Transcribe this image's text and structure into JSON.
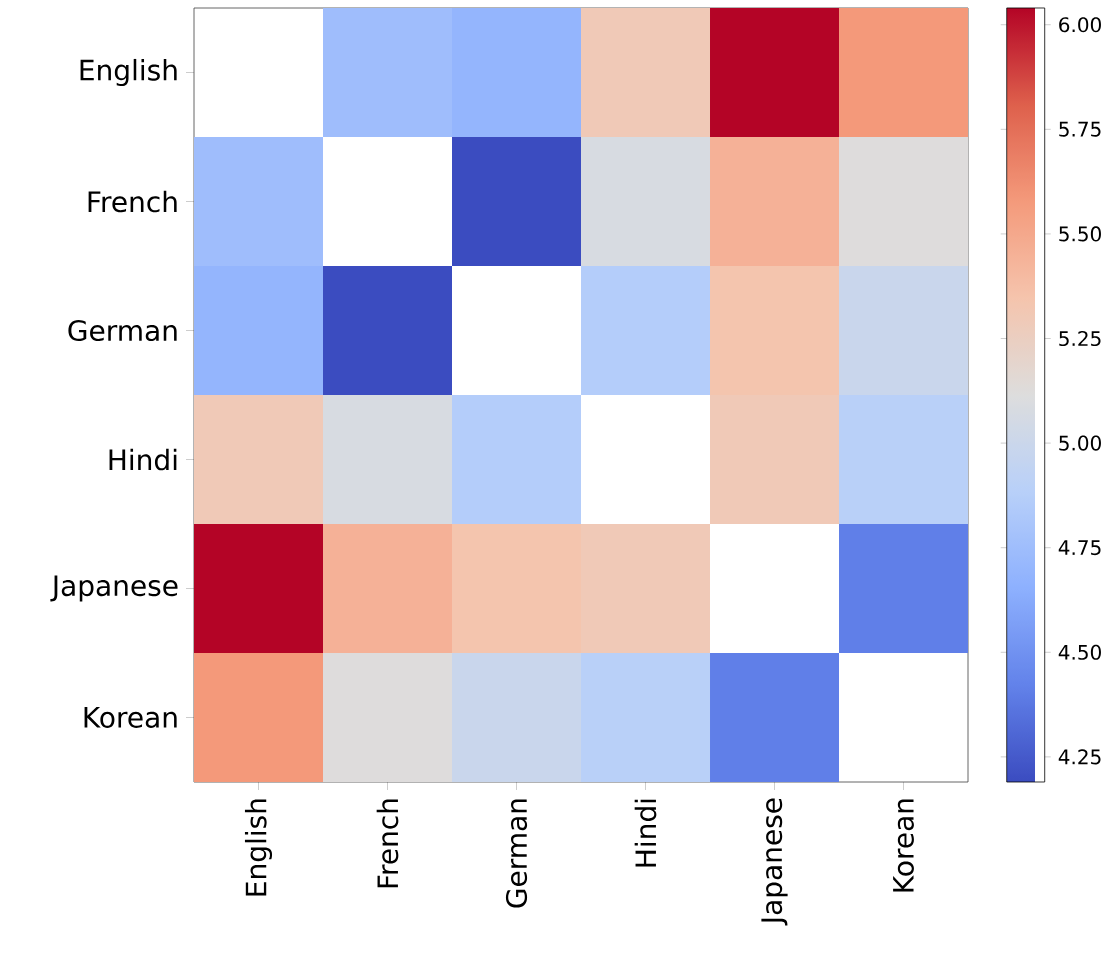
{
  "chart_data": {
    "type": "heatmap",
    "categories": [
      "English",
      "French",
      "German",
      "Hindi",
      "Japanese",
      "Korean"
    ],
    "y_categories": [
      "English",
      "French",
      "German",
      "Hindi",
      "Japanese",
      "Korean"
    ],
    "cells": [
      [
        null,
        4.75,
        4.69,
        5.3,
        6.04,
        5.58
      ],
      [
        4.75,
        null,
        4.19,
        5.08,
        5.45,
        5.12
      ],
      [
        4.69,
        4.19,
        null,
        4.86,
        5.34,
        4.99
      ],
      [
        5.3,
        5.08,
        4.86,
        null,
        5.3,
        4.89
      ],
      [
        6.04,
        5.45,
        5.34,
        5.3,
        null,
        4.41
      ],
      [
        5.58,
        5.12,
        4.99,
        4.89,
        4.41,
        null
      ]
    ],
    "clim": [
      4.19,
      6.04
    ],
    "cticks": [
      {
        "value": 4.25,
        "label": "4.25"
      },
      {
        "value": 4.5,
        "label": "4.50"
      },
      {
        "value": 4.75,
        "label": "4.75"
      },
      {
        "value": 5.0,
        "label": "5.00"
      },
      {
        "value": 5.25,
        "label": "5.25"
      },
      {
        "value": 5.5,
        "label": "5.50"
      },
      {
        "value": 5.75,
        "label": "5.75"
      },
      {
        "value": 6.0,
        "label": "6.00"
      }
    ],
    "grid": false
  }
}
